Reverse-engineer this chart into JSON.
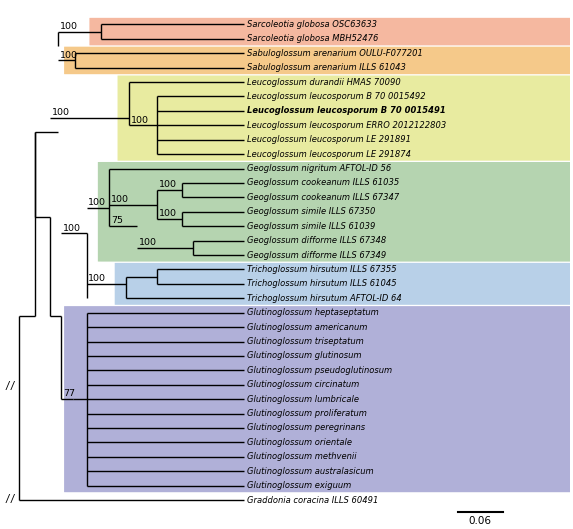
{
  "figsize": [
    5.73,
    5.29
  ],
  "dpi": 100,
  "scale_bar_label": "0.06",
  "groups": {
    "sarcoleotia": {
      "color": "#f5b8a0"
    },
    "sabuloglossum": {
      "color": "#f5c98a"
    },
    "leucoglossum": {
      "color": "#e8eba0"
    },
    "geoglossum": {
      "color": "#b5d4b0"
    },
    "trichoglossum": {
      "color": "#b8d0e8"
    },
    "glutinoglossum": {
      "color": "#b0b0d8"
    }
  },
  "taxa": [
    {
      "label": "Sarcoleotia globosa OSC63633",
      "bold": false,
      "group": "sarcoleotia"
    },
    {
      "label": "Sarcoleotia globosa MBH52476",
      "bold": false,
      "group": "sarcoleotia"
    },
    {
      "label": "Sabuloglossum arenarium OULU-F077201",
      "bold": false,
      "group": "sabuloglossum"
    },
    {
      "label": "Sabuloglossum arenarium ILLS 61043",
      "bold": false,
      "group": "sabuloglossum"
    },
    {
      "label": "Leucoglossum durandii HMAS 70090",
      "bold": false,
      "group": "leucoglossum"
    },
    {
      "label": "Leucoglossum leucosporum B 70 0015492",
      "bold": false,
      "group": "leucoglossum"
    },
    {
      "label": "Leucoglossum leucosporum B 70 0015491",
      "bold": true,
      "group": "leucoglossum"
    },
    {
      "label": "Leucoglossum leucosporum ERRO 2012122803",
      "bold": false,
      "group": "leucoglossum"
    },
    {
      "label": "Leucoglossum leucosporum LE 291891",
      "bold": false,
      "group": "leucoglossum"
    },
    {
      "label": "Leucoglossum leucosporum LE 291874",
      "bold": false,
      "group": "leucoglossum"
    },
    {
      "label": "Geoglossum nigritum AFTOL-ID 56",
      "bold": false,
      "group": "geoglossum"
    },
    {
      "label": "Geoglossum cookeanum ILLS 61035",
      "bold": false,
      "group": "geoglossum"
    },
    {
      "label": "Geoglossum cookeanum ILLS 67347",
      "bold": false,
      "group": "geoglossum"
    },
    {
      "label": "Geoglossum simile ILLS 67350",
      "bold": false,
      "group": "geoglossum"
    },
    {
      "label": "Geoglossum simile ILLS 61039",
      "bold": false,
      "group": "geoglossum"
    },
    {
      "label": "Geoglossum difforme ILLS 67348",
      "bold": false,
      "group": "geoglossum"
    },
    {
      "label": "Geoglossum difforme ILLS 67349",
      "bold": false,
      "group": "geoglossum"
    },
    {
      "label": "Trichoglossum hirsutum ILLS 67355",
      "bold": false,
      "group": "trichoglossum"
    },
    {
      "label": "Trichoglossum hirsutum ILLS 61045",
      "bold": false,
      "group": "trichoglossum"
    },
    {
      "label": "Trichoglossum hirsutum AFTOL-ID 64",
      "bold": false,
      "group": "trichoglossum"
    },
    {
      "label": "Glutinoglossum heptaseptatum",
      "bold": false,
      "group": "glutinoglossum"
    },
    {
      "label": "Glutinoglossum americanum",
      "bold": false,
      "group": "glutinoglossum"
    },
    {
      "label": "Glutinoglossum triseptatum",
      "bold": false,
      "group": "glutinoglossum"
    },
    {
      "label": "Glutinoglossum glutinosum",
      "bold": false,
      "group": "glutinoglossum"
    },
    {
      "label": "Glutinoglossum pseudoglutinosum",
      "bold": false,
      "group": "glutinoglossum"
    },
    {
      "label": "Glutinoglossum circinatum",
      "bold": false,
      "group": "glutinoglossum"
    },
    {
      "label": "Glutinoglossum lumbricale",
      "bold": false,
      "group": "glutinoglossum"
    },
    {
      "label": "Glutinoglossum proliferatum",
      "bold": false,
      "group": "glutinoglossum"
    },
    {
      "label": "Glutinoglossum peregrinans",
      "bold": false,
      "group": "glutinoglossum"
    },
    {
      "label": "Glutinoglossum orientale",
      "bold": false,
      "group": "glutinoglossum"
    },
    {
      "label": "Glutinoglossum methvenii",
      "bold": false,
      "group": "glutinoglossum"
    },
    {
      "label": "Glutinoglossum australasicum",
      "bold": false,
      "group": "glutinoglossum"
    },
    {
      "label": "Glutinoglossum exiguum",
      "bold": false,
      "group": "glutinoglossum"
    },
    {
      "label": "Graddonia coracina ILLS 60491",
      "bold": false,
      "group": "outgroup"
    }
  ]
}
